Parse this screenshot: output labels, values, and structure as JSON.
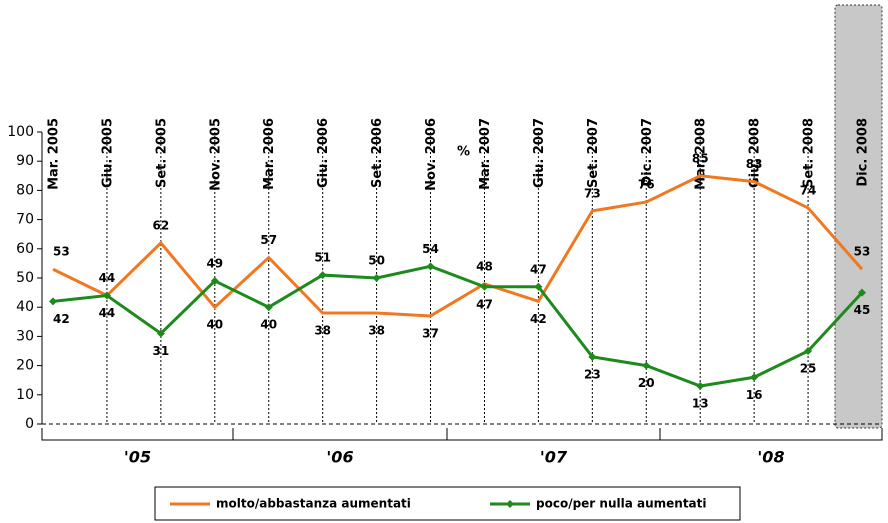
{
  "chart_data": {
    "type": "line",
    "categories": [
      "Mar. 2005",
      "Giu. 2005",
      "Set. 2005",
      "Nov. 2005",
      "Mar. 2006",
      "Giu. 2006",
      "Set. 2006",
      "Nov. 2006",
      "Mar. 2007",
      "Giu. 2007",
      "Set. 2007",
      "Dic. 2007",
      "Mar. 2008",
      "Giu. 2008",
      "Set. 2008",
      "Dic. 2008"
    ],
    "series": [
      {
        "name": "molto/abbastanza aumentati",
        "color": "#f07820",
        "values": [
          53,
          44,
          62,
          40,
          57,
          38,
          38,
          37,
          48,
          42,
          73,
          76,
          85,
          83,
          74,
          53
        ]
      },
      {
        "name": "poco/per nulla aumentati",
        "color": "#1e8a1e",
        "values": [
          42,
          44,
          31,
          49,
          40,
          51,
          50,
          54,
          47,
          47,
          23,
          20,
          13,
          16,
          25,
          45
        ]
      }
    ],
    "ylim": [
      0,
      100
    ],
    "yticks": [
      0,
      10,
      20,
      30,
      40,
      50,
      60,
      70,
      80,
      90,
      100
    ],
    "annotation": "%",
    "year_labels": [
      "'05",
      "'06",
      "'07",
      "'08"
    ],
    "legend": "bottom"
  }
}
